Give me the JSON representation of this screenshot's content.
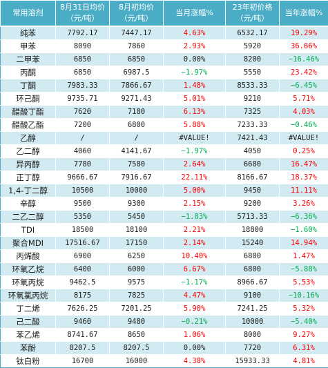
{
  "headers": [
    "常用溶剂",
    "8月31日均价\n（元/吨）",
    "8月初均价\n（元/吨）",
    "当月涨幅%",
    "23年初价格\n（元/吨）",
    "当年涨幅%"
  ],
  "colors": {
    "header_bg": "#4BACC6",
    "band": "#D2EAF1",
    "up": "#FF0000",
    "down": "#00B050",
    "neutral": "#1a1a1a"
  },
  "rows": [
    [
      "纯苯",
      "7792.17",
      "7447.17",
      "4.63%",
      "6532.17",
      "19.29%"
    ],
    [
      "甲苯",
      "8090",
      "7860",
      "2.93%",
      "5920",
      "36.66%"
    ],
    [
      "二甲苯",
      "6850",
      "6850",
      "0.00%",
      "8200",
      "−16.46%"
    ],
    [
      "丙酮",
      "6850",
      "6987.5",
      "−1.97%",
      "5550",
      "23.42%"
    ],
    [
      "丁酮",
      "7983.33",
      "7866.67",
      "1.48%",
      "8533.33",
      "−6.45%"
    ],
    [
      "环己酮",
      "9735.71",
      "9271.43",
      "5.01%",
      "9210",
      "5.71%"
    ],
    [
      "醋酸丁酯",
      "7620",
      "7180",
      "6.13%",
      "7325",
      "4.03%"
    ],
    [
      "醋酸乙酯",
      "7200",
      "6800",
      "5.88%",
      "7233.33",
      "−0.46%"
    ],
    [
      "乙醇",
      "/",
      "/",
      "#VALUE!",
      "7421.43",
      "#VALUE!"
    ],
    [
      "乙二醇",
      "4060",
      "4141.67",
      "−1.97%",
      "4050",
      "0.25%"
    ],
    [
      "异丙醇",
      "7780",
      "7580",
      "2.64%",
      "6680",
      "16.47%"
    ],
    [
      "正丁醇",
      "9666.67",
      "7916.67",
      "22.11%",
      "8166.67",
      "18.37%"
    ],
    [
      "1,4-丁二醇",
      "10500",
      "10000",
      "5.00%",
      "9450",
      "11.11%"
    ],
    [
      "辛醇",
      "9500",
      "9300",
      "2.15%",
      "9200",
      "3.26%"
    ],
    [
      "二乙二醇",
      "5350",
      "5450",
      "−1.83%",
      "5713.33",
      "−6.36%"
    ],
    [
      "TDI",
      "18500",
      "18100",
      "2.21%",
      "18800",
      "−1.60%"
    ],
    [
      "聚合MDI",
      "17516.67",
      "17150",
      "2.14%",
      "15240",
      "14.94%"
    ],
    [
      "丙烯酸",
      "6900",
      "6250",
      "10.40%",
      "6800",
      "1.47%"
    ],
    [
      "环氧乙烷",
      "6400",
      "6000",
      "6.67%",
      "6800",
      "−5.88%"
    ],
    [
      "环氧丙烷",
      "9462.5",
      "9575",
      "−1.17%",
      "8966.67",
      "5.53%"
    ],
    [
      "环氧氯丙烷",
      "8175",
      "7825",
      "4.47%",
      "9100",
      "−10.16%"
    ],
    [
      "丁二烯",
      "7626.25",
      "7201.25",
      "5.90%",
      "7241.25",
      "5.32%"
    ],
    [
      "己二酸",
      "9460",
      "9480",
      "−0.21%",
      "10000",
      "−5.40%"
    ],
    [
      "苯乙烯",
      "8741.67",
      "8650",
      "1.06%",
      "8000",
      "9.27%"
    ],
    [
      "苯酚",
      "8207.5",
      "8207.5",
      "0.00%",
      "7720",
      "6.31%"
    ],
    [
      "钛白粉",
      "16700",
      "16000",
      "4.38%",
      "15933.33",
      "4.81%"
    ]
  ]
}
